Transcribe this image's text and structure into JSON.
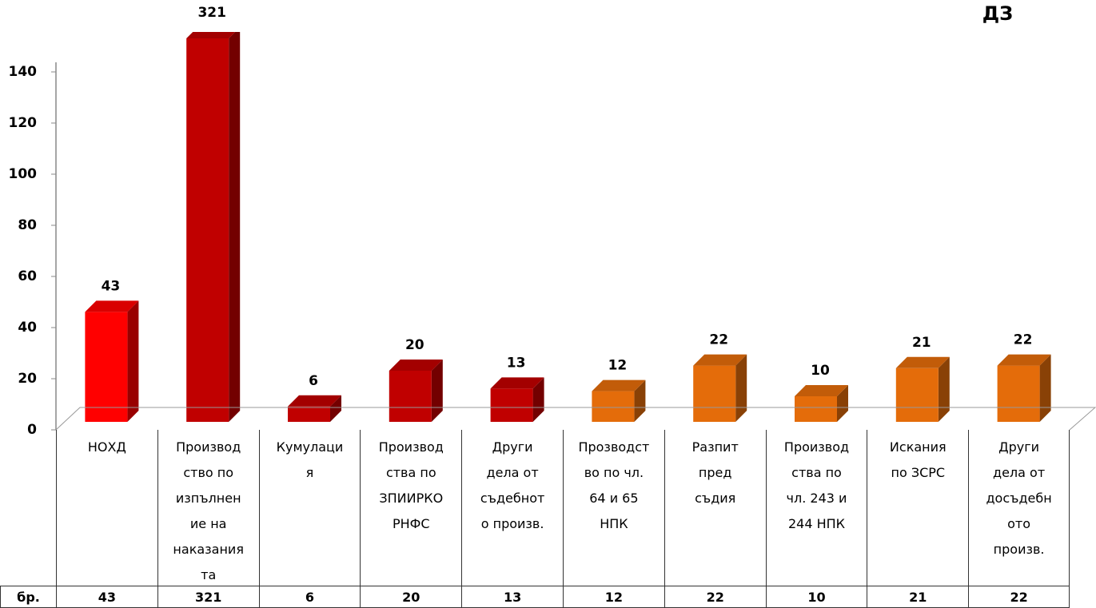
{
  "chart_data": {
    "type": "bar3d",
    "title": "ДЗ",
    "categories": [
      "НОХД",
      "Производ\nство по\nизпълнен\nие на\nнаказания\nта",
      "Кумулаци\nя",
      "Производ\nства по\nЗПИИРКО\nРНФС",
      "Други\nдела от\nсъдебнот\nо произв.",
      "Прозводст\nво по чл.\n64 и 65\nНПК",
      "Разпит\nпред\nсъдия",
      "Производ\nства по\nчл. 243 и\n244 НПК",
      "Искания\nпо ЗСРС",
      "Други\nдела от\nдосъдебн\nото\nпроизв."
    ],
    "values": [
      43,
      321,
      6,
      20,
      13,
      12,
      22,
      10,
      21,
      22
    ],
    "colors": [
      "#ff0000",
      "#c00000",
      "#c00000",
      "#c00000",
      "#c00000",
      "#e46c0a",
      "#e46c0a",
      "#e46c0a",
      "#e46c0a",
      "#e46c0a"
    ],
    "table_row_label": "бр.",
    "ylim": [
      0,
      150
    ],
    "yticks": [
      0,
      20,
      40,
      60,
      80,
      100,
      120,
      140
    ]
  }
}
